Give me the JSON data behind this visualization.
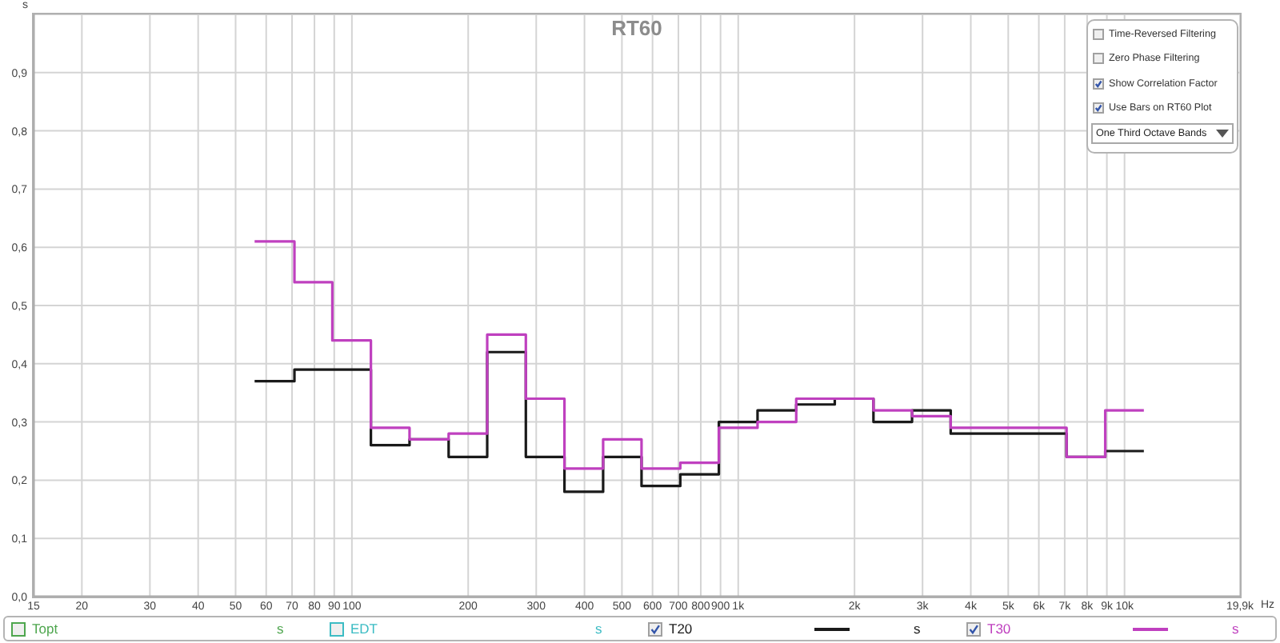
{
  "chart_data": {
    "type": "step",
    "title": "RT60",
    "ylabel": "s",
    "xlabel": "Hz",
    "x": [
      56,
      71,
      89,
      112,
      141,
      178,
      224,
      282,
      355,
      447,
      562,
      708,
      891,
      1122,
      1413,
      1778,
      2239,
      2818,
      3548,
      4467,
      5623,
      7079,
      8913,
      11220
    ],
    "series": [
      {
        "name": "Topt",
        "color": "#4ea64e",
        "values": [
          null,
          null,
          null,
          null,
          null,
          null,
          null,
          null,
          null,
          null,
          null,
          null,
          null,
          null,
          null,
          null,
          null,
          null,
          null,
          null,
          null,
          null,
          null,
          null
        ]
      },
      {
        "name": "EDT",
        "color": "#3cbcc4",
        "values": [
          null,
          null,
          null,
          null,
          null,
          null,
          null,
          null,
          null,
          null,
          null,
          null,
          null,
          null,
          null,
          null,
          null,
          null,
          null,
          null,
          null,
          null,
          null,
          null
        ]
      },
      {
        "name": "T20",
        "color": "#1a1a1a",
        "values": [
          0.37,
          0.39,
          0.39,
          0.26,
          0.27,
          0.24,
          0.42,
          0.24,
          0.18,
          0.24,
          0.19,
          0.21,
          0.3,
          0.32,
          0.33,
          0.34,
          0.3,
          0.32,
          0.28,
          0.28,
          0.28,
          0.24,
          0.25,
          0.25
        ]
      },
      {
        "name": "T30",
        "color": "#bf40bf",
        "values": [
          0.61,
          0.54,
          0.44,
          0.29,
          0.27,
          0.28,
          0.45,
          0.34,
          0.22,
          0.27,
          0.22,
          0.23,
          0.29,
          0.3,
          0.34,
          0.34,
          0.32,
          0.31,
          0.29,
          0.29,
          0.29,
          0.24,
          0.32,
          0.32
        ]
      }
    ],
    "log": "x",
    "xlim": [
      15,
      19900
    ],
    "xticks": [
      15,
      20,
      30,
      40,
      50,
      60,
      70,
      80,
      90,
      100,
      200,
      300,
      400,
      500,
      600,
      700,
      800,
      900,
      {
        "value": 1000,
        "label": "1k"
      },
      {
        "value": 2000,
        "label": "2k"
      },
      {
        "value": 3000,
        "label": "3k"
      },
      {
        "value": 4000,
        "label": "4k"
      },
      {
        "value": 5000,
        "label": "5k"
      },
      {
        "value": 6000,
        "label": "6k"
      },
      {
        "value": 7000,
        "label": "7k"
      },
      {
        "value": 8000,
        "label": "8k"
      },
      {
        "value": 9000,
        "label": "9k"
      },
      {
        "value": 10000,
        "label": "10k"
      },
      {
        "value": 19900,
        "label": "19,9k"
      }
    ],
    "ylim": [
      0,
      1
    ],
    "yticks": [
      {
        "value": 0,
        "label": "0,0"
      },
      {
        "value": 0.1,
        "label": "0,1"
      },
      {
        "value": 0.2,
        "label": "0,2"
      },
      {
        "value": 0.3,
        "label": "0,3"
      },
      {
        "value": 0.4,
        "label": "0,4"
      },
      {
        "value": 0.5,
        "label": "0,5"
      },
      {
        "value": 0.6,
        "label": "0,6"
      },
      {
        "value": 0.7,
        "label": "0,7"
      },
      {
        "value": 0.8,
        "label": "0,8"
      },
      {
        "value": 0.9,
        "label": "0,9"
      }
    ],
    "grid": true,
    "legend": "bottom",
    "annotations": [
      "Time-Reversed Filtering",
      "Zero Phase Filtering",
      "Show Correlation Factor",
      "Use Bars on RT60 Plot",
      "One Third Octave Bands"
    ]
  }
}
